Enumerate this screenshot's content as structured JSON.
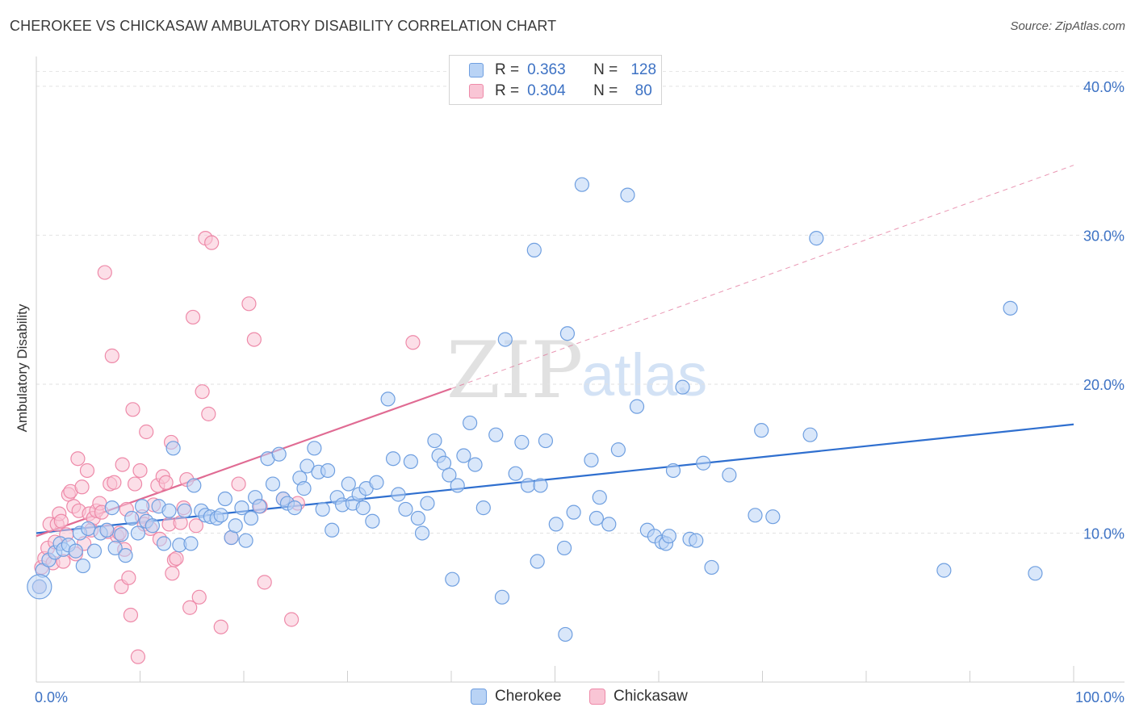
{
  "header": {
    "title": "CHEROKEE VS CHICKASAW AMBULATORY DISABILITY CORRELATION CHART",
    "source": "Source: ZipAtlas.com"
  },
  "watermark": {
    "zip": "ZIP",
    "atlas": "atlas"
  },
  "legend_top": {
    "r_label": "R =",
    "n_label": "N =",
    "rows": [
      {
        "r": "0.363",
        "n": "128"
      },
      {
        "r": "0.304",
        "n": "80"
      }
    ]
  },
  "colors": {
    "cherokee_fill": "#b9d3f5",
    "cherokee_stroke": "#6f9fe0",
    "cherokee_line": "#2f6fcf",
    "chickasaw_fill": "#f9c5d5",
    "chickasaw_stroke": "#ee8aa9",
    "chickasaw_line": "#e06b93",
    "tick_label": "#3d72c4"
  },
  "chart_data": {
    "type": "scatter",
    "title": "CHEROKEE VS CHICKASAW AMBULATORY DISABILITY CORRELATION CHART",
    "xlabel": "",
    "ylabel": "Ambulatory Disability",
    "xlim": [
      0,
      100
    ],
    "ylim": [
      0,
      42
    ],
    "x_tick_labels": [
      "0.0%",
      "100.0%"
    ],
    "y_ticks": [
      10,
      20,
      30,
      40
    ],
    "y_tick_labels": [
      "10.0%",
      "20.0%",
      "30.0%",
      "40.0%"
    ],
    "grid": true,
    "legend": "top-center and bottom",
    "series": [
      {
        "name": "Cherokee",
        "r": 0.363,
        "n": 128,
        "trend": {
          "x": [
            0,
            100
          ],
          "y": [
            10.0,
            17.3
          ]
        },
        "points": [
          [
            0.3,
            6.4
          ],
          [
            0.6,
            7.5
          ],
          [
            1.2,
            8.2
          ],
          [
            1.8,
            8.7
          ],
          [
            2.3,
            9.3
          ],
          [
            2.6,
            8.9
          ],
          [
            3.1,
            9.2
          ],
          [
            3.8,
            8.8
          ],
          [
            4.2,
            10.0
          ],
          [
            4.5,
            7.8
          ],
          [
            5.0,
            10.3
          ],
          [
            5.6,
            8.8
          ],
          [
            6.2,
            10.0
          ],
          [
            6.8,
            10.2
          ],
          [
            7.3,
            11.7
          ],
          [
            7.6,
            9.0
          ],
          [
            8.2,
            9.9
          ],
          [
            8.6,
            8.5
          ],
          [
            9.2,
            11.0
          ],
          [
            9.8,
            10.0
          ],
          [
            10.2,
            11.8
          ],
          [
            10.6,
            10.8
          ],
          [
            11.2,
            10.5
          ],
          [
            11.8,
            11.8
          ],
          [
            12.3,
            9.3
          ],
          [
            12.8,
            11.5
          ],
          [
            13.2,
            15.7
          ],
          [
            13.8,
            9.2
          ],
          [
            14.3,
            11.5
          ],
          [
            14.9,
            9.3
          ],
          [
            15.2,
            13.2
          ],
          [
            15.9,
            11.5
          ],
          [
            16.3,
            11.2
          ],
          [
            16.8,
            11.1
          ],
          [
            17.4,
            11.0
          ],
          [
            17.8,
            11.2
          ],
          [
            18.2,
            12.3
          ],
          [
            18.8,
            9.7
          ],
          [
            19.2,
            10.5
          ],
          [
            19.8,
            11.7
          ],
          [
            20.2,
            9.5
          ],
          [
            20.7,
            11.0
          ],
          [
            21.1,
            12.4
          ],
          [
            21.5,
            11.8
          ],
          [
            22.3,
            15.0
          ],
          [
            22.8,
            13.3
          ],
          [
            23.4,
            15.3
          ],
          [
            23.8,
            12.3
          ],
          [
            24.2,
            12.0
          ],
          [
            24.9,
            11.7
          ],
          [
            25.4,
            13.7
          ],
          [
            25.8,
            13.0
          ],
          [
            26.1,
            14.5
          ],
          [
            26.8,
            15.7
          ],
          [
            27.2,
            14.1
          ],
          [
            27.6,
            11.6
          ],
          [
            28.1,
            14.2
          ],
          [
            28.5,
            10.2
          ],
          [
            29.0,
            12.4
          ],
          [
            29.5,
            11.9
          ],
          [
            30.1,
            13.3
          ],
          [
            30.5,
            12.0
          ],
          [
            31.1,
            12.6
          ],
          [
            31.5,
            11.7
          ],
          [
            31.8,
            13.0
          ],
          [
            32.4,
            10.8
          ],
          [
            32.8,
            13.4
          ],
          [
            33.9,
            19.0
          ],
          [
            34.4,
            15.0
          ],
          [
            34.9,
            12.6
          ],
          [
            35.6,
            11.6
          ],
          [
            36.1,
            14.8
          ],
          [
            36.8,
            11.0
          ],
          [
            37.2,
            10.0
          ],
          [
            37.7,
            12.0
          ],
          [
            38.4,
            16.2
          ],
          [
            38.8,
            15.2
          ],
          [
            39.3,
            14.7
          ],
          [
            39.8,
            13.9
          ],
          [
            40.1,
            6.9
          ],
          [
            40.6,
            13.2
          ],
          [
            41.2,
            15.2
          ],
          [
            41.8,
            17.4
          ],
          [
            42.3,
            14.6
          ],
          [
            43.1,
            11.7
          ],
          [
            44.3,
            16.6
          ],
          [
            44.9,
            5.7
          ],
          [
            45.2,
            23.0
          ],
          [
            46.2,
            14.0
          ],
          [
            46.8,
            16.1
          ],
          [
            47.4,
            13.2
          ],
          [
            48.0,
            29.0
          ],
          [
            48.3,
            8.1
          ],
          [
            48.6,
            13.2
          ],
          [
            49.1,
            16.2
          ],
          [
            50.1,
            10.6
          ],
          [
            50.9,
            9.0
          ],
          [
            51.2,
            23.4
          ],
          [
            51.8,
            11.4
          ],
          [
            52.6,
            33.4
          ],
          [
            53.5,
            14.9
          ],
          [
            54.0,
            11.0
          ],
          [
            54.3,
            12.4
          ],
          [
            55.2,
            10.6
          ],
          [
            56.1,
            15.6
          ],
          [
            57.0,
            32.7
          ],
          [
            57.9,
            18.5
          ],
          [
            58.9,
            10.2
          ],
          [
            59.6,
            9.8
          ],
          [
            60.3,
            9.4
          ],
          [
            60.7,
            9.3
          ],
          [
            61.4,
            14.2
          ],
          [
            62.3,
            19.8
          ],
          [
            63.0,
            9.6
          ],
          [
            63.6,
            9.5
          ],
          [
            64.3,
            14.7
          ],
          [
            65.1,
            7.7
          ],
          [
            66.8,
            13.9
          ],
          [
            69.3,
            11.2
          ],
          [
            69.9,
            16.9
          ],
          [
            71.0,
            11.1
          ],
          [
            74.6,
            16.6
          ],
          [
            75.2,
            29.8
          ],
          [
            87.5,
            7.5
          ],
          [
            93.9,
            25.1
          ],
          [
            96.3,
            7.3
          ],
          [
            51.0,
            3.2
          ],
          [
            61.0,
            9.8
          ]
        ]
      },
      {
        "name": "Chickasaw",
        "r": 0.304,
        "n": 80,
        "trend": {
          "x": [
            0,
            40
          ],
          "y": [
            9.8,
            19.7
          ]
        },
        "trend_extension": {
          "x": [
            40,
            100
          ],
          "y": [
            19.7,
            34.7
          ]
        },
        "points": [
          [
            0.3,
            6.4
          ],
          [
            0.5,
            7.7
          ],
          [
            0.8,
            8.3
          ],
          [
            1.1,
            9.0
          ],
          [
            1.3,
            10.6
          ],
          [
            1.6,
            8.0
          ],
          [
            1.8,
            9.4
          ],
          [
            2.0,
            10.6
          ],
          [
            2.2,
            11.3
          ],
          [
            2.4,
            10.8
          ],
          [
            2.6,
            8.1
          ],
          [
            2.9,
            9.9
          ],
          [
            3.1,
            12.6
          ],
          [
            3.3,
            12.8
          ],
          [
            3.6,
            11.8
          ],
          [
            3.8,
            8.6
          ],
          [
            4.0,
            15.0
          ],
          [
            4.1,
            11.5
          ],
          [
            4.4,
            13.1
          ],
          [
            4.6,
            9.3
          ],
          [
            4.9,
            14.2
          ],
          [
            5.1,
            11.3
          ],
          [
            5.3,
            10.2
          ],
          [
            5.5,
            11.0
          ],
          [
            5.8,
            11.5
          ],
          [
            6.1,
            12.0
          ],
          [
            6.3,
            11.4
          ],
          [
            6.6,
            27.5
          ],
          [
            6.9,
            10.1
          ],
          [
            7.1,
            13.3
          ],
          [
            7.3,
            21.9
          ],
          [
            7.5,
            13.4
          ],
          [
            7.8,
            9.8
          ],
          [
            8.0,
            10.0
          ],
          [
            8.2,
            6.4
          ],
          [
            8.3,
            14.6
          ],
          [
            8.5,
            8.9
          ],
          [
            8.7,
            11.6
          ],
          [
            8.9,
            7.0
          ],
          [
            9.1,
            4.5
          ],
          [
            9.3,
            18.3
          ],
          [
            9.5,
            13.3
          ],
          [
            9.8,
            1.7
          ],
          [
            10.0,
            14.2
          ],
          [
            10.2,
            11.1
          ],
          [
            10.4,
            10.6
          ],
          [
            10.6,
            16.8
          ],
          [
            11.0,
            10.3
          ],
          [
            11.3,
            11.9
          ],
          [
            11.7,
            13.2
          ],
          [
            11.9,
            9.6
          ],
          [
            12.2,
            13.8
          ],
          [
            12.5,
            13.4
          ],
          [
            12.8,
            10.6
          ],
          [
            13.1,
            7.3
          ],
          [
            13.3,
            8.2
          ],
          [
            13.5,
            8.3
          ],
          [
            13.9,
            10.7
          ],
          [
            14.2,
            11.7
          ],
          [
            14.5,
            13.6
          ],
          [
            14.8,
            5.0
          ],
          [
            15.1,
            24.5
          ],
          [
            15.4,
            10.5
          ],
          [
            15.7,
            5.7
          ],
          [
            16.0,
            19.5
          ],
          [
            16.3,
            29.8
          ],
          [
            16.6,
            18.0
          ],
          [
            16.9,
            29.5
          ],
          [
            17.8,
            3.7
          ],
          [
            18.8,
            9.7
          ],
          [
            19.5,
            13.3
          ],
          [
            20.5,
            25.4
          ],
          [
            21.0,
            23.0
          ],
          [
            21.6,
            11.8
          ],
          [
            22.0,
            6.7
          ],
          [
            23.8,
            12.3
          ],
          [
            24.6,
            4.2
          ],
          [
            25.2,
            12.0
          ],
          [
            36.3,
            22.8
          ],
          [
            13.0,
            16.1
          ]
        ]
      }
    ]
  },
  "bottom_legend": {
    "items": [
      "Cherokee",
      "Chickasaw"
    ]
  }
}
